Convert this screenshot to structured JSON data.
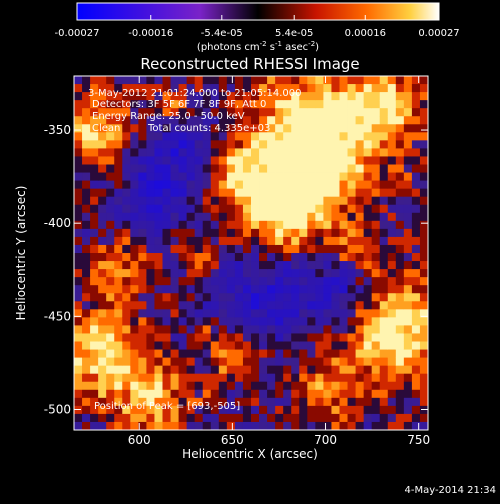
{
  "chart_data": {
    "type": "heatmap",
    "title": "Reconstructed RHESSI Image",
    "xlabel": "Heliocentric X (arcsec)",
    "ylabel": "Heliocentric Y (arcsec)",
    "xlim": [
      565,
      755
    ],
    "ylim": [
      -511,
      -321
    ],
    "x_ticks": [
      600,
      650,
      700,
      750
    ],
    "y_ticks": [
      -500,
      -450,
      -400,
      -350
    ],
    "colorbar": {
      "ticks": [
        -0.00027,
        -0.00016,
        -5.4e-05,
        5.4e-05,
        0.00016,
        0.00027
      ],
      "tick_labels": [
        "-0.00027",
        "-0.00016",
        "-5.4e-05",
        "5.4e-05",
        "0.00016",
        "0.00027"
      ],
      "range": [
        -0.00027,
        0.00027
      ],
      "unit_base": "(photons cm",
      "unit_exp1": "-2",
      "unit_mid": " s",
      "unit_exp2": "-1",
      "unit_end": " asec",
      "unit_exp3": "-2",
      "unit_close": ")"
    },
    "annotations": {
      "time_range": "3-May-2012 21:01:24.000 to 21:05:14.000",
      "detectors": "Detectors: 3F 5F 6F 7F 8F 9F, Att 0",
      "energy": "Energy Range: 25.0 - 50.0 keV",
      "algorithm": "Clean",
      "counts": "Total counts: 4.335e+03",
      "peak": "Position of Peak = [693,-505]"
    },
    "footer_date": "4-May-2014 21:34"
  }
}
